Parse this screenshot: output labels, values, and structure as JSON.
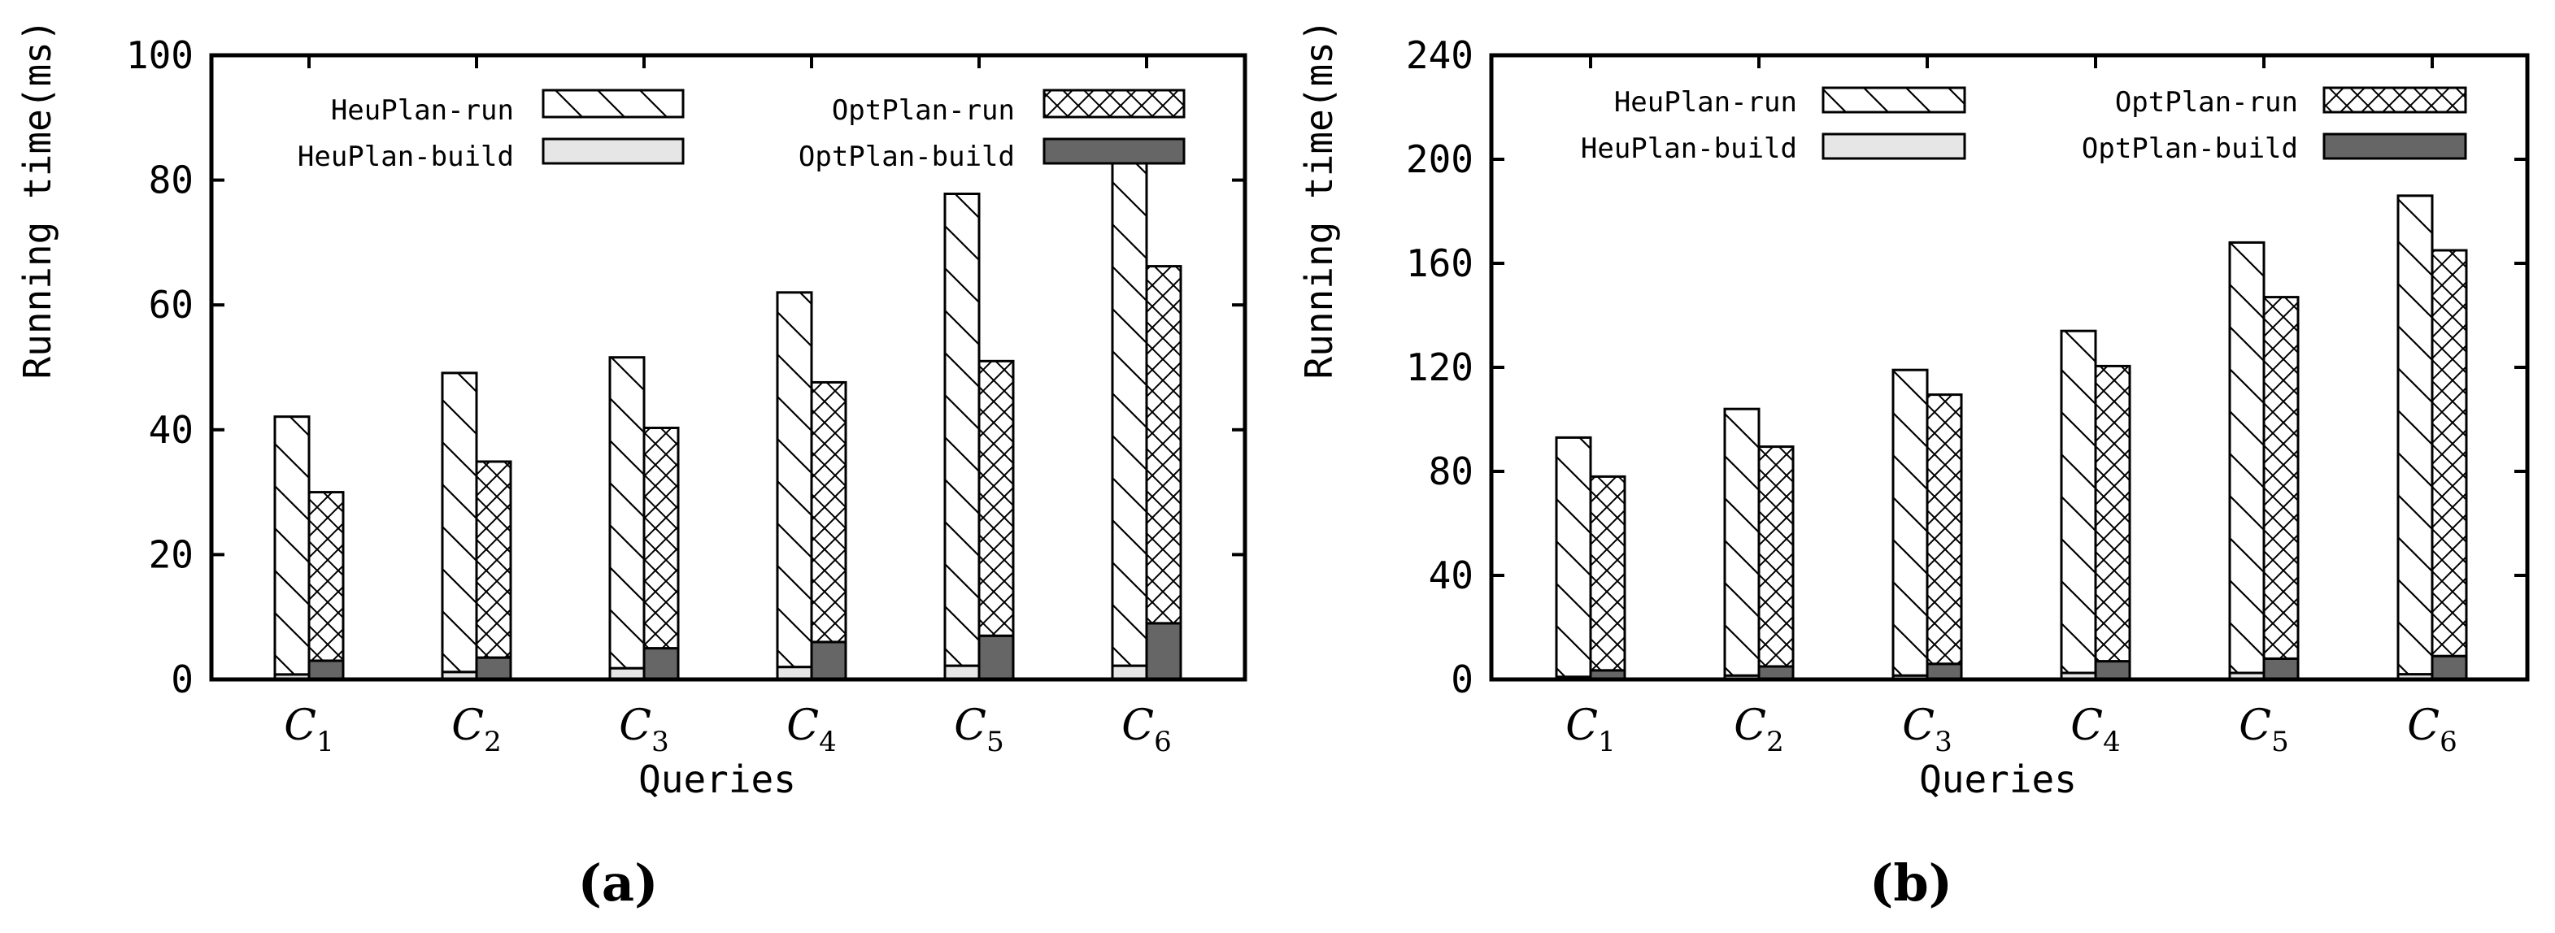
{
  "panel_labels": [
    "(a)",
    "(b)"
  ],
  "legend_entries": [
    {
      "key": "heu_run",
      "label": "HeuPlan-run",
      "pattern": "diag",
      "color": "#ffffff"
    },
    {
      "key": "opt_run",
      "label": "OptPlan-run",
      "pattern": "cross",
      "color": "#ffffff"
    },
    {
      "key": "heu_build",
      "label": "HeuPlan-build",
      "pattern": "solid",
      "color": "#e6e6e6"
    },
    {
      "key": "opt_build",
      "label": "OptPlan-build",
      "pattern": "solid",
      "color": "#666666"
    }
  ],
  "chart_data": [
    {
      "type": "bar",
      "stacked": true,
      "title": "",
      "xlabel": "Queries",
      "ylabel": "Running time(ms)",
      "ylim": [
        0,
        100
      ],
      "yticks": [
        0,
        20,
        40,
        60,
        80,
        100
      ],
      "categories": [
        {
          "base": "C",
          "sub": "1"
        },
        {
          "base": "C",
          "sub": "2"
        },
        {
          "base": "C",
          "sub": "3"
        },
        {
          "base": "C",
          "sub": "4"
        },
        {
          "base": "C",
          "sub": "5"
        },
        {
          "base": "C",
          "sub": "6"
        }
      ],
      "series": [
        {
          "name": "HeuPlan-build",
          "group": "HeuPlan",
          "values": [
            0.8,
            1.2,
            1.8,
            2.0,
            2.2,
            2.2
          ]
        },
        {
          "name": "HeuPlan-run",
          "group": "HeuPlan",
          "values": [
            41.3,
            47.9,
            49.8,
            60.0,
            75.6,
            80.8
          ]
        },
        {
          "name": "OptPlan-build",
          "group": "OptPlan",
          "values": [
            3.0,
            3.5,
            5.0,
            6.0,
            7.0,
            9.0
          ]
        },
        {
          "name": "OptPlan-run",
          "group": "OptPlan",
          "values": [
            27.0,
            31.4,
            35.3,
            41.6,
            44.0,
            57.2
          ]
        }
      ]
    },
    {
      "type": "bar",
      "stacked": true,
      "title": "",
      "xlabel": "Queries",
      "ylabel": "Running time(ms)",
      "ylim": [
        0,
        240
      ],
      "yticks": [
        0,
        40,
        80,
        120,
        160,
        200,
        240
      ],
      "categories": [
        {
          "base": "C",
          "sub": "1"
        },
        {
          "base": "C",
          "sub": "2"
        },
        {
          "base": "C",
          "sub": "3"
        },
        {
          "base": "C",
          "sub": "4"
        },
        {
          "base": "C",
          "sub": "5"
        },
        {
          "base": "C",
          "sub": "6"
        }
      ],
      "series": [
        {
          "name": "HeuPlan-build",
          "group": "HeuPlan",
          "values": [
            1.0,
            1.5,
            1.5,
            2.5,
            2.5,
            2.0
          ]
        },
        {
          "name": "HeuPlan-run",
          "group": "HeuPlan",
          "values": [
            92.0,
            102.5,
            117.5,
            131.5,
            165.5,
            184.0
          ]
        },
        {
          "name": "OptPlan-build",
          "group": "OptPlan",
          "values": [
            3.5,
            5.0,
            6.0,
            7.0,
            8.0,
            9.0
          ]
        },
        {
          "name": "OptPlan-run",
          "group": "OptPlan",
          "values": [
            74.5,
            84.5,
            103.5,
            113.5,
            139.0,
            156.0
          ]
        }
      ]
    }
  ]
}
